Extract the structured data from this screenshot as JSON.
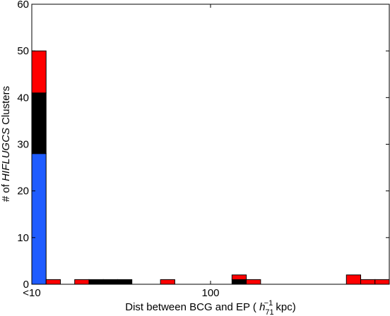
{
  "chart_data": {
    "type": "bar",
    "stacked": true,
    "xlabel": {
      "pre": "Dist between BCG and EP ( ",
      "h": "h",
      "sub": "71",
      "sup": "−1",
      "post": " kpc)"
    },
    "ylabel": {
      "pre": "# of ",
      "italic": "HIFLUGCS",
      "post": " Clusters"
    },
    "ylim": [
      0,
      60
    ],
    "yticks": [
      "0",
      "10",
      "20",
      "30",
      "40",
      "50",
      "60"
    ],
    "xtick_labels": [
      {
        "label": "<10",
        "bin": 0
      },
      {
        "label": "100",
        "bin": 12.5
      }
    ],
    "grid": false,
    "n_bins": 25,
    "series": [
      {
        "color": "#1f5cff",
        "values": [
          28,
          0,
          0,
          0,
          0,
          0,
          0,
          0,
          0,
          0,
          0,
          0,
          0,
          0,
          0,
          0,
          0,
          0,
          0,
          0,
          0,
          0,
          0,
          0,
          0
        ]
      },
      {
        "color": "#000000",
        "values": [
          13,
          0,
          0,
          0,
          1,
          1,
          1,
          0,
          0,
          0,
          0,
          0,
          0,
          0,
          1,
          0,
          0,
          0,
          0,
          0,
          0,
          0,
          0,
          0,
          0
        ]
      },
      {
        "color": "#ff0000",
        "values": [
          9,
          1,
          0,
          1,
          0,
          0,
          0,
          0,
          0,
          1,
          0,
          0,
          0,
          0,
          1,
          1,
          0,
          0,
          0,
          0,
          0,
          0,
          2,
          1,
          1
        ]
      }
    ]
  }
}
